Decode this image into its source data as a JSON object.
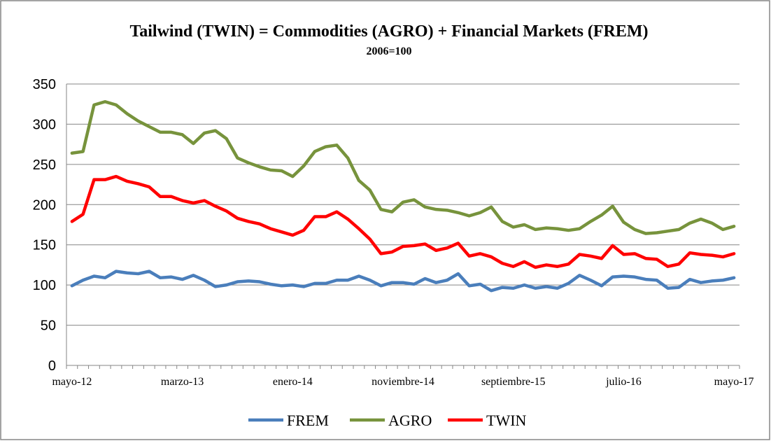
{
  "chart_data": {
    "type": "line",
    "title": "Tailwind (TWIN) = Commodities (AGRO) + Financial Markets (FREM)",
    "subtitle": "2006=100",
    "categories": [
      "mayo-12",
      null,
      null,
      null,
      null,
      null,
      null,
      null,
      null,
      null,
      "marzo-13",
      null,
      null,
      null,
      null,
      null,
      null,
      null,
      null,
      null,
      "enero-14",
      null,
      null,
      null,
      null,
      null,
      null,
      null,
      null,
      null,
      "noviembre-14",
      null,
      null,
      null,
      null,
      null,
      null,
      null,
      null,
      null,
      "septiembre-15",
      null,
      null,
      null,
      null,
      null,
      null,
      null,
      null,
      null,
      "julio-16",
      null,
      null,
      null,
      null,
      null,
      null,
      null,
      null,
      null,
      "mayo-17"
    ],
    "series": [
      {
        "name": "FREM",
        "color": "#4a7ebb",
        "values": [
          99,
          106,
          111,
          109,
          117,
          115,
          114,
          117,
          109,
          110,
          107,
          112,
          106,
          98,
          100,
          104,
          105,
          104,
          101,
          99,
          100,
          98,
          102,
          102,
          106,
          106,
          111,
          106,
          99,
          103,
          103,
          101,
          108,
          103,
          106,
          114,
          99,
          101,
          93,
          97,
          96,
          100,
          96,
          98,
          96,
          102,
          112,
          106,
          99,
          110,
          111,
          110,
          107,
          106,
          96,
          97,
          107,
          103,
          105,
          106,
          109
        ]
      },
      {
        "name": "AGRO",
        "color": "#77933c",
        "values": [
          264,
          266,
          324,
          328,
          324,
          313,
          304,
          297,
          290,
          290,
          287,
          276,
          289,
          292,
          282,
          258,
          252,
          247,
          243,
          242,
          235,
          248,
          266,
          272,
          274,
          258,
          230,
          218,
          194,
          191,
          203,
          206,
          197,
          194,
          193,
          190,
          186,
          190,
          197,
          179,
          172,
          175,
          169,
          171,
          170,
          168,
          170,
          179,
          187,
          198,
          178,
          169,
          164,
          165,
          167,
          169,
          177,
          182,
          177,
          169,
          173
        ]
      },
      {
        "name": "TWIN",
        "color": "#ff0000",
        "values": [
          179,
          188,
          231,
          231,
          235,
          229,
          226,
          222,
          210,
          210,
          205,
          202,
          205,
          198,
          192,
          183,
          179,
          176,
          170,
          166,
          162,
          168,
          185,
          185,
          191,
          182,
          170,
          157,
          139,
          141,
          148,
          149,
          151,
          143,
          146,
          152,
          136,
          139,
          135,
          127,
          123,
          129,
          122,
          125,
          123,
          126,
          138,
          136,
          133,
          149,
          138,
          139,
          133,
          132,
          123,
          126,
          140,
          138,
          137,
          135,
          139
        ]
      }
    ],
    "ylim": [
      0,
      350
    ],
    "yticks": [
      0,
      50,
      100,
      150,
      200,
      250,
      300,
      350
    ],
    "grid": true,
    "legend": "bottom"
  }
}
